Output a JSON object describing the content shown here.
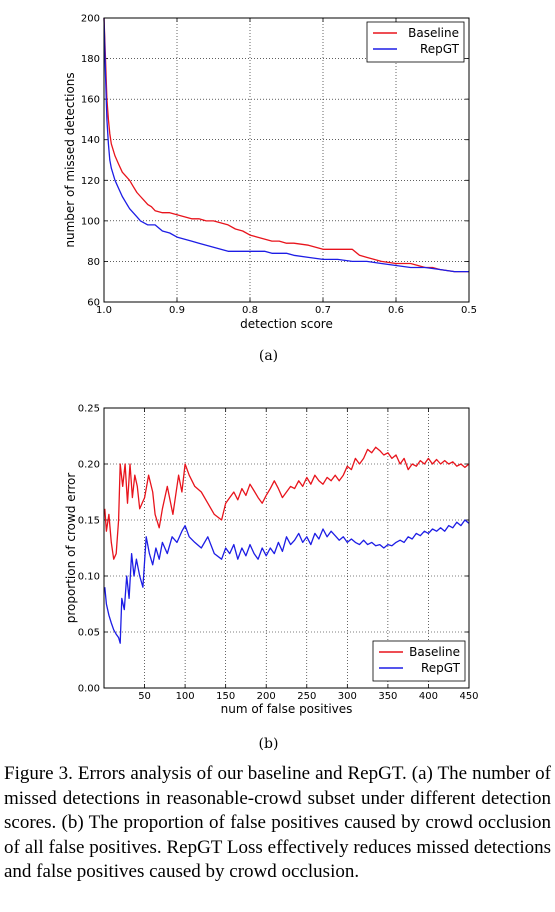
{
  "chart_data": [
    {
      "type": "line",
      "xlabel": "detection score",
      "ylabel": "number of missed detections",
      "xlim": [
        1.0,
        0.5
      ],
      "ylim": [
        60,
        200
      ],
      "x_reversed": true,
      "x_ticks": [
        "1.0",
        "0.9",
        "0.8",
        "0.7",
        "0.6",
        "0.5"
      ],
      "y_ticks": [
        "60",
        "80",
        "100",
        "120",
        "140",
        "160",
        "180",
        "200"
      ],
      "grid": true,
      "legend_position": "top-right",
      "sublabel": "(a)",
      "series": [
        {
          "name": "Baseline",
          "color": "#e8141c",
          "x": [
            1.0,
            0.998,
            0.996,
            0.994,
            0.992,
            0.99,
            0.985,
            0.98,
            0.975,
            0.97,
            0.965,
            0.96,
            0.955,
            0.95,
            0.945,
            0.94,
            0.935,
            0.93,
            0.92,
            0.91,
            0.9,
            0.89,
            0.88,
            0.87,
            0.86,
            0.85,
            0.84,
            0.83,
            0.82,
            0.81,
            0.8,
            0.79,
            0.78,
            0.77,
            0.76,
            0.75,
            0.74,
            0.72,
            0.7,
            0.69,
            0.68,
            0.67,
            0.66,
            0.65,
            0.64,
            0.63,
            0.62,
            0.6,
            0.58,
            0.57,
            0.56,
            0.55,
            0.54,
            0.52,
            0.5
          ],
          "y": [
            200,
            180,
            160,
            150,
            143,
            138,
            132,
            128,
            124,
            122,
            120,
            117,
            114,
            112,
            110,
            108,
            107,
            105,
            104,
            104,
            103,
            102,
            101,
            101,
            100,
            100,
            99,
            98,
            96,
            95,
            93,
            92,
            91,
            90,
            90,
            89,
            89,
            88,
            86,
            86,
            86,
            86,
            86,
            83,
            82,
            81,
            80,
            79,
            79,
            78,
            77,
            77,
            76,
            75,
            75
          ]
        },
        {
          "name": "RepGT",
          "color": "#1d1de5",
          "x": [
            1.0,
            0.998,
            0.996,
            0.994,
            0.992,
            0.99,
            0.985,
            0.98,
            0.975,
            0.97,
            0.965,
            0.96,
            0.955,
            0.95,
            0.94,
            0.93,
            0.92,
            0.91,
            0.9,
            0.89,
            0.88,
            0.87,
            0.86,
            0.85,
            0.84,
            0.83,
            0.82,
            0.81,
            0.8,
            0.79,
            0.78,
            0.77,
            0.76,
            0.75,
            0.74,
            0.72,
            0.7,
            0.68,
            0.66,
            0.64,
            0.62,
            0.6,
            0.58,
            0.56,
            0.54,
            0.52,
            0.5
          ],
          "y": [
            200,
            172,
            150,
            138,
            130,
            126,
            120,
            116,
            112,
            109,
            106,
            104,
            102,
            100,
            98,
            98,
            95,
            94,
            92,
            91,
            90,
            89,
            88,
            87,
            86,
            85,
            85,
            85,
            85,
            85,
            85,
            84,
            84,
            84,
            83,
            82,
            81,
            81,
            80,
            80,
            79,
            78,
            77,
            77,
            76,
            75,
            75
          ]
        }
      ]
    },
    {
      "type": "line",
      "xlabel": "num of false positives",
      "ylabel": "proportion of crowd error",
      "xlim": [
        0,
        450
      ],
      "ylim": [
        0.0,
        0.25
      ],
      "x_ticks": [
        "50",
        "100",
        "150",
        "200",
        "250",
        "300",
        "350",
        "400",
        "450"
      ],
      "y_ticks": [
        "0.00",
        "0.05",
        "0.10",
        "0.15",
        "0.20",
        "0.25"
      ],
      "grid": true,
      "legend_position": "bottom-right",
      "sublabel": "(b)",
      "series": [
        {
          "name": "Baseline",
          "color": "#e8141c",
          "x": [
            1,
            3,
            6,
            9,
            12,
            15,
            18,
            20,
            23,
            26,
            29,
            32,
            35,
            38,
            41,
            44,
            47,
            50,
            55,
            60,
            63,
            68,
            72,
            78,
            85,
            92,
            96,
            100,
            105,
            112,
            120,
            128,
            136,
            145,
            150,
            155,
            160,
            165,
            170,
            175,
            180,
            185,
            190,
            195,
            200,
            205,
            210,
            215,
            220,
            225,
            230,
            235,
            240,
            245,
            250,
            255,
            260,
            265,
            270,
            275,
            280,
            285,
            290,
            295,
            300,
            305,
            310,
            315,
            320,
            325,
            330,
            335,
            340,
            345,
            350,
            355,
            360,
            365,
            370,
            375,
            380,
            385,
            390,
            395,
            400,
            405,
            410,
            415,
            420,
            425,
            430,
            435,
            440,
            445,
            450
          ],
          "y": [
            0.16,
            0.14,
            0.155,
            0.13,
            0.115,
            0.12,
            0.15,
            0.2,
            0.18,
            0.2,
            0.165,
            0.2,
            0.17,
            0.19,
            0.18,
            0.16,
            0.165,
            0.17,
            0.19,
            0.175,
            0.155,
            0.143,
            0.16,
            0.18,
            0.155,
            0.19,
            0.175,
            0.2,
            0.19,
            0.18,
            0.175,
            0.165,
            0.155,
            0.15,
            0.165,
            0.17,
            0.175,
            0.168,
            0.178,
            0.172,
            0.182,
            0.176,
            0.17,
            0.165,
            0.172,
            0.178,
            0.185,
            0.178,
            0.17,
            0.175,
            0.18,
            0.178,
            0.185,
            0.18,
            0.188,
            0.182,
            0.19,
            0.185,
            0.182,
            0.188,
            0.185,
            0.19,
            0.185,
            0.19,
            0.198,
            0.195,
            0.205,
            0.2,
            0.205,
            0.213,
            0.21,
            0.215,
            0.212,
            0.208,
            0.21,
            0.205,
            0.208,
            0.2,
            0.205,
            0.195,
            0.2,
            0.198,
            0.203,
            0.2,
            0.205,
            0.2,
            0.204,
            0.2,
            0.203,
            0.2,
            0.202,
            0.198,
            0.2,
            0.197,
            0.2
          ]
        },
        {
          "name": "RepGT",
          "color": "#1d1de5",
          "x": [
            1,
            3,
            6,
            9,
            12,
            15,
            18,
            20,
            22,
            25,
            28,
            31,
            34,
            37,
            40,
            44,
            48,
            52,
            56,
            60,
            64,
            68,
            72,
            78,
            84,
            90,
            96,
            100,
            105,
            112,
            120,
            128,
            136,
            145,
            150,
            155,
            160,
            165,
            170,
            175,
            180,
            185,
            190,
            195,
            200,
            205,
            210,
            215,
            220,
            225,
            230,
            235,
            240,
            245,
            250,
            255,
            260,
            265,
            270,
            275,
            280,
            285,
            290,
            295,
            300,
            305,
            310,
            315,
            320,
            325,
            330,
            335,
            340,
            345,
            350,
            355,
            360,
            365,
            370,
            375,
            380,
            385,
            390,
            395,
            400,
            405,
            410,
            415,
            420,
            425,
            430,
            435,
            440,
            445,
            450
          ],
          "y": [
            0.09,
            0.075,
            0.065,
            0.058,
            0.052,
            0.048,
            0.045,
            0.04,
            0.08,
            0.07,
            0.1,
            0.08,
            0.12,
            0.1,
            0.115,
            0.1,
            0.09,
            0.135,
            0.12,
            0.11,
            0.125,
            0.115,
            0.13,
            0.12,
            0.135,
            0.13,
            0.14,
            0.145,
            0.135,
            0.13,
            0.125,
            0.135,
            0.12,
            0.115,
            0.125,
            0.12,
            0.128,
            0.115,
            0.125,
            0.118,
            0.128,
            0.12,
            0.115,
            0.125,
            0.118,
            0.125,
            0.12,
            0.13,
            0.122,
            0.135,
            0.128,
            0.132,
            0.138,
            0.13,
            0.135,
            0.128,
            0.138,
            0.133,
            0.142,
            0.135,
            0.14,
            0.136,
            0.132,
            0.135,
            0.13,
            0.133,
            0.13,
            0.128,
            0.132,
            0.128,
            0.13,
            0.127,
            0.128,
            0.125,
            0.128,
            0.127,
            0.13,
            0.132,
            0.13,
            0.135,
            0.133,
            0.138,
            0.136,
            0.14,
            0.138,
            0.142,
            0.14,
            0.143,
            0.14,
            0.145,
            0.143,
            0.148,
            0.145,
            0.15,
            0.147
          ]
        }
      ]
    }
  ],
  "caption": "Figure 3. Errors analysis of our baseline and RepGT. (a) The number of missed detections in reasonable-crowd subset under different detection scores. (b) The proportion of false positives caused by crowd occlusion of all false positives. RepGT Loss effectively reduces missed detections and false positives caused by crowd occlusion."
}
